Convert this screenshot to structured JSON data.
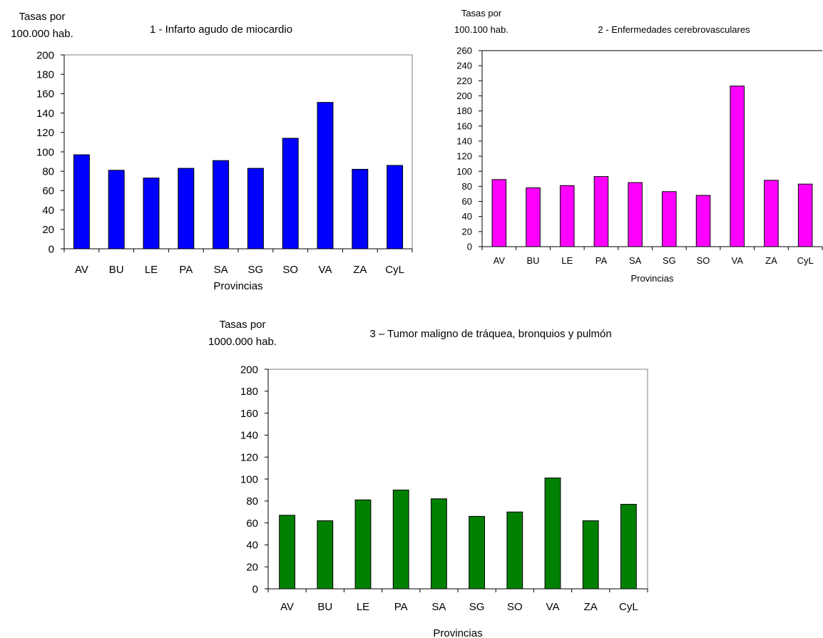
{
  "chart_data": [
    {
      "type": "bar",
      "title": "1 - Infarto agudo de miocardio",
      "ylabel": [
        "Tasas por",
        "100.000 hab."
      ],
      "xlabel": "Provincias",
      "categories": [
        "AV",
        "BU",
        "LE",
        "PA",
        "SA",
        "SG",
        "SO",
        "VA",
        "ZA",
        "CyL"
      ],
      "values": [
        97,
        81,
        73,
        83,
        91,
        83,
        114,
        151,
        82,
        86
      ],
      "ylim": [
        0,
        200
      ],
      "yticks": [
        0,
        20,
        40,
        60,
        80,
        100,
        120,
        140,
        160,
        180,
        200
      ],
      "color": "#0000ff",
      "frame": "box",
      "grid": false,
      "legend": "none"
    },
    {
      "type": "bar",
      "title": "2 - Enfermedades cerebrovasculares",
      "ylabel": [
        "Tasas por",
        "100.100 hab."
      ],
      "xlabel": "Provincias",
      "categories": [
        "AV",
        "BU",
        "LE",
        "PA",
        "SA",
        "SG",
        "SO",
        "VA",
        "ZA",
        "CyL"
      ],
      "values": [
        89,
        78,
        81,
        93,
        85,
        73,
        68,
        213,
        88,
        83
      ],
      "ylim": [
        0,
        260
      ],
      "yticks": [
        0,
        20,
        40,
        60,
        80,
        100,
        120,
        140,
        160,
        180,
        200,
        220,
        240,
        260
      ],
      "color": "#ff00ff",
      "frame": "top",
      "grid": false,
      "legend": "none"
    },
    {
      "type": "bar",
      "title": "3 – Tumor maligno de tráquea, bronquios y pulmón",
      "ylabel": [
        "Tasas por",
        "1000.000 hab."
      ],
      "xlabel": "Provincias",
      "categories": [
        "AV",
        "BU",
        "LE",
        "PA",
        "SA",
        "SG",
        "SO",
        "VA",
        "ZA",
        "CyL"
      ],
      "values": [
        67,
        62,
        81,
        90,
        82,
        66,
        70,
        101,
        62,
        77
      ],
      "ylim": [
        0,
        200
      ],
      "yticks": [
        0,
        20,
        40,
        60,
        80,
        100,
        120,
        140,
        160,
        180,
        200
      ],
      "color": "#008000",
      "frame": "box",
      "grid": false,
      "legend": "none"
    }
  ]
}
